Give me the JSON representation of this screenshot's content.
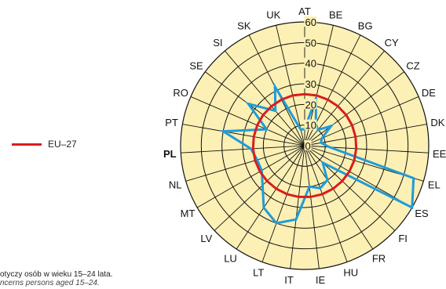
{
  "chart_data": {
    "type": "radar",
    "categories": [
      "AT",
      "BE",
      "BG",
      "CY",
      "CZ",
      "DE",
      "DK",
      "EE",
      "EL",
      "ES",
      "FI",
      "FR",
      "HU",
      "IE",
      "IT",
      "LT",
      "LU",
      "LV",
      "MT",
      "NL",
      "PL",
      "PT",
      "RO",
      "SE",
      "SI",
      "SK",
      "UK"
    ],
    "highlighted_category": "PL",
    "rings": [
      0,
      10,
      20,
      30,
      40,
      50,
      60
    ],
    "ylim": [
      0,
      60
    ],
    "series": [
      {
        "name": "",
        "color": "#1f9cd8",
        "values": [
          8,
          24,
          12,
          10,
          16,
          9,
          8,
          12,
          55,
          60,
          12,
          20,
          22,
          20,
          36,
          40,
          36,
          28,
          24,
          24,
          26,
          40,
          20,
          34,
          22,
          32,
          8
        ]
      },
      {
        "name": "EU–27",
        "color": "#d81e1e",
        "values": [
          25,
          25,
          25,
          25,
          25,
          25,
          25,
          25,
          25,
          25,
          25,
          25,
          25,
          25,
          25,
          25,
          25,
          25,
          25,
          25,
          25,
          25,
          25,
          25,
          25,
          25,
          25
        ]
      }
    ]
  },
  "legend": {
    "label": "EU–27",
    "color": "#d81e1e"
  },
  "footnote": {
    "pl": "otyczy osób w wieku 15–24 lata.",
    "en": "ncerns persons aged 15–24."
  }
}
